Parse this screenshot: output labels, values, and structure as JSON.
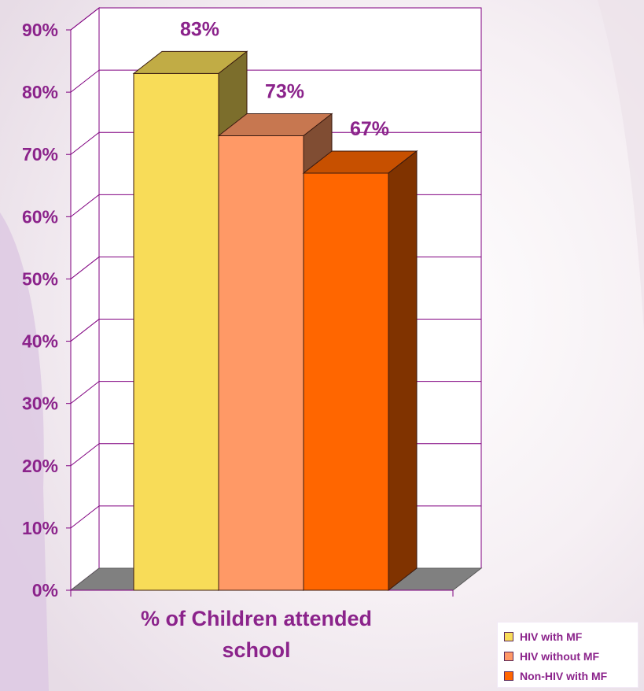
{
  "chart_data": {
    "type": "bar",
    "categories": [
      "% of Children  attended school"
    ],
    "category_lines": [
      "% of Children  attended",
      "school"
    ],
    "series": [
      {
        "name": "HIV with MF",
        "values": [
          83
        ],
        "label": "83%",
        "color": "#f8dc58"
      },
      {
        "name": "HIV without MF",
        "values": [
          73
        ],
        "label": "73%",
        "color": "#ff9966"
      },
      {
        "name": "Non-HIV with MF",
        "values": [
          67
        ],
        "label": "67%",
        "color": "#ff6600"
      }
    ],
    "y_ticks": [
      "0%",
      "10%",
      "20%",
      "30%",
      "40%",
      "50%",
      "60%",
      "70%",
      "80%",
      "90%"
    ],
    "ylim": [
      0,
      90
    ],
    "three_d": true,
    "grid": true,
    "legend_position": "bottom-right",
    "colors": {
      "text": "#8b238b",
      "axis": "#800080",
      "floor": "#808080"
    }
  }
}
